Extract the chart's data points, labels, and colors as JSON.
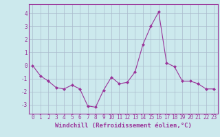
{
  "x": [
    0,
    1,
    2,
    3,
    4,
    5,
    6,
    7,
    8,
    9,
    10,
    11,
    12,
    13,
    14,
    15,
    16,
    17,
    18,
    19,
    20,
    21,
    22,
    23
  ],
  "y": [
    0.0,
    -0.8,
    -1.2,
    -1.7,
    -1.8,
    -1.5,
    -1.8,
    -3.1,
    -3.2,
    -1.9,
    -0.9,
    -1.4,
    -1.3,
    -0.5,
    1.6,
    3.0,
    4.1,
    0.2,
    -0.1,
    -1.2,
    -1.2,
    -1.4,
    -1.8,
    -1.8
  ],
  "line_color": "#993399",
  "marker": "D",
  "marker_size": 2,
  "bg_color": "#cce9ed",
  "grid_color": "#aabbcc",
  "xlabel": "Windchill (Refroidissement éolien,°C)",
  "xlabel_fontsize": 6.5,
  "tick_fontsize": 5.5,
  "ylabel_ticks": [
    -3,
    -2,
    -1,
    0,
    1,
    2,
    3,
    4
  ],
  "xlim": [
    -0.5,
    23.5
  ],
  "ylim": [
    -3.7,
    4.7
  ],
  "xtick_labels": [
    "0",
    "1",
    "2",
    "3",
    "4",
    "5",
    "6",
    "7",
    "8",
    "9",
    "10",
    "11",
    "12",
    "13",
    "14",
    "15",
    "16",
    "17",
    "18",
    "19",
    "20",
    "21",
    "22",
    "23"
  ]
}
